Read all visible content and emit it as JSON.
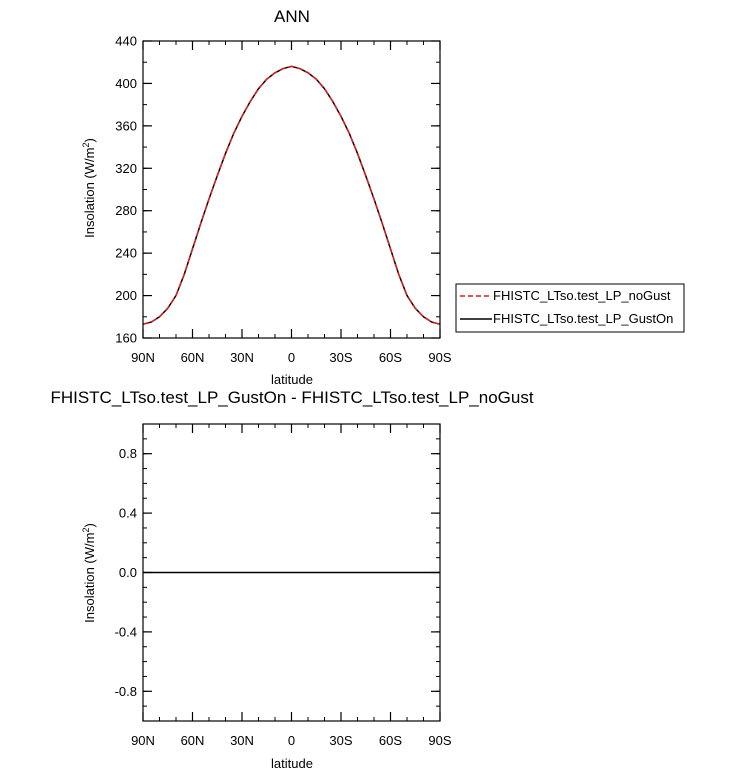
{
  "chart_data": [
    {
      "type": "line",
      "title": "ANN",
      "xlabel": "latitude",
      "ylabel_main": "Insolation (W/m",
      "ylabel_sup": "2",
      "ylabel_end": ")",
      "xlim": [
        -90,
        90
      ],
      "ylim": [
        160,
        440
      ],
      "xticks": [
        -90,
        -60,
        -30,
        0,
        30,
        60,
        90
      ],
      "xticklabels": [
        "90N",
        "60N",
        "30N",
        "0",
        "30S",
        "60S",
        "90S"
      ],
      "yticks": [
        160,
        200,
        240,
        280,
        320,
        360,
        400,
        440
      ],
      "yticklabels": [
        "160",
        "200",
        "240",
        "280",
        "320",
        "360",
        "400",
        "440"
      ],
      "x": [
        -90,
        -85,
        -80,
        -75,
        -70,
        -65,
        -60,
        -55,
        -50,
        -45,
        -40,
        -35,
        -30,
        -25,
        -20,
        -15,
        -10,
        -5,
        0,
        5,
        10,
        15,
        20,
        25,
        30,
        35,
        40,
        45,
        50,
        55,
        60,
        65,
        70,
        75,
        80,
        85,
        90
      ],
      "series": [
        {
          "name": "FHISTC_LTso.test_LP_noGust",
          "color": "#e41a1c",
          "dash": "dashed",
          "values": [
            173,
            175,
            180,
            188,
            200,
            220,
            244,
            268,
            291,
            313,
            334,
            353,
            369,
            383,
            395,
            404,
            410,
            414,
            416,
            414,
            410,
            404,
            395,
            383,
            369,
            353,
            334,
            313,
            291,
            268,
            244,
            220,
            200,
            188,
            180,
            175,
            173
          ]
        },
        {
          "name": "FHISTC_LTso.test_LP_GustOn",
          "color": "#000000",
          "dash": "solid",
          "values": [
            173,
            175,
            180,
            188,
            200,
            220,
            244,
            268,
            291,
            313,
            334,
            353,
            369,
            383,
            395,
            404,
            410,
            414,
            416,
            414,
            410,
            404,
            395,
            383,
            369,
            353,
            334,
            313,
            291,
            268,
            244,
            220,
            200,
            188,
            180,
            175,
            173
          ]
        }
      ],
      "legend_position": "right"
    },
    {
      "type": "line",
      "title": "FHISTC_LTso.test_LP_GustOn - FHISTC_LTso.test_LP_noGust",
      "xlabel": "latitude",
      "ylabel_main": "Insolation (W/m",
      "ylabel_sup": "2",
      "ylabel_end": ")",
      "xlim": [
        -90,
        90
      ],
      "ylim": [
        -1,
        1
      ],
      "xticks": [
        -90,
        -60,
        -30,
        0,
        30,
        60,
        90
      ],
      "xticklabels": [
        "90N",
        "60N",
        "30N",
        "0",
        "30S",
        "60S",
        "90S"
      ],
      "yticks": [
        -0.8,
        -0.4,
        0.0,
        0.4,
        0.8
      ],
      "yticklabels": [
        "-0.8",
        "-0.4",
        "0.0",
        "0.4",
        "0.8"
      ],
      "x": [
        -90,
        90
      ],
      "series": [
        {
          "color": "#000000",
          "dash": "solid",
          "values": [
            0,
            0
          ]
        }
      ]
    }
  ]
}
